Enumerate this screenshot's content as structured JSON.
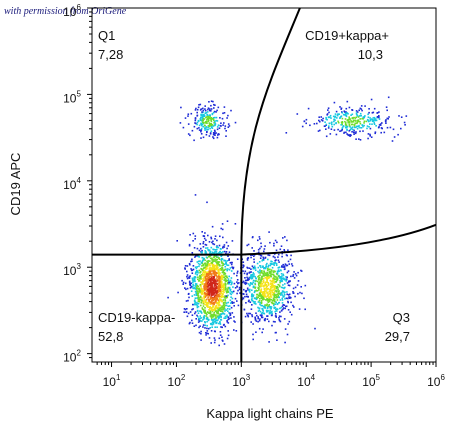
{
  "watermark": "with permission from OriGene",
  "chart_data": {
    "type": "scatter",
    "title": "",
    "xlabel": "Kappa light chains PE",
    "ylabel": "CD19 APC",
    "x_scale": "log",
    "y_scale": "log",
    "xlim": [
      5,
      1000000
    ],
    "ylim": [
      80,
      1000000
    ],
    "x_ticks": [
      "10^1",
      "10^2",
      "10^3",
      "10^4",
      "10^5",
      "10^6"
    ],
    "y_ticks": [
      "10^2",
      "10^3",
      "10^4",
      "10^5",
      "10^6"
    ],
    "quadrants": [
      {
        "name": "Q1",
        "value": "7,28",
        "position": "top-left"
      },
      {
        "name": "CD19+kappa+",
        "value": "10,3",
        "position": "top-right"
      },
      {
        "name": "CD19-kappa-",
        "value": "52,8",
        "position": "bottom-left"
      },
      {
        "name": "Q3",
        "value": "29,7",
        "position": "bottom-right"
      }
    ],
    "populations": [
      {
        "x_center": 350,
        "y_center": 600,
        "share": 52.8
      },
      {
        "x_center": 2500,
        "y_center": 600,
        "share": 29.7
      },
      {
        "x_center": 300,
        "y_center": 50000,
        "share": 7.28
      },
      {
        "x_center": 50000,
        "y_center": 50000,
        "share": 10.3
      }
    ],
    "colors": {
      "low": "#1e2bd6",
      "mid": "#16c8e0",
      "midhigh": "#6fdc2a",
      "high": "#f5e31a",
      "peak": "#f07a18",
      "max": "#d0261a"
    }
  }
}
